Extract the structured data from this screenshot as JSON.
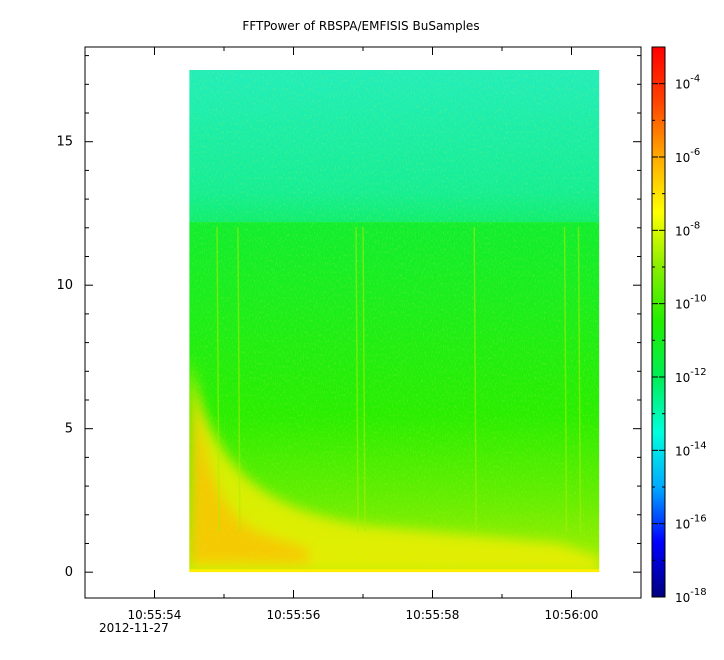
{
  "chart_data": {
    "type": "heatmap",
    "title": "FFTPower of RBSPA/EMFISIS  BuSamples",
    "xlabel": "",
    "ylabel": "",
    "x_axis": {
      "type": "time",
      "range": [
        "10:55:53.0",
        "10:56:01.0"
      ],
      "tick_labels": [
        "10:55:54",
        "10:55:56",
        "10:55:58",
        "10:56:00"
      ],
      "date_label": "2012-11-27",
      "minor_step_seconds": 1
    },
    "y_axis": {
      "range": [
        -0.9,
        18.3
      ],
      "ticks": [
        0,
        5,
        10,
        15
      ],
      "minor_step": 1
    },
    "data_extent": {
      "x": [
        "10:55:54.5",
        "10:56:00.4"
      ],
      "y": [
        0,
        17.5
      ]
    },
    "band_boundary_y": 12.2,
    "colorbar": {
      "scale": "log",
      "range": [
        1e-18,
        0.001
      ],
      "tick_labels": [
        {
          "base": "10",
          "exp": "-4"
        },
        {
          "base": "10",
          "exp": "-6"
        },
        {
          "base": "10",
          "exp": "-8"
        },
        {
          "base": "10",
          "exp": "-10"
        },
        {
          "base": "10",
          "exp": "-12"
        },
        {
          "base": "10",
          "exp": "-14"
        },
        {
          "base": "10",
          "exp": "-16"
        },
        {
          "base": "10",
          "exp": "-18"
        }
      ],
      "tick_values": [
        0.0001,
        1e-06,
        1e-08,
        1e-10,
        1e-12,
        1e-14,
        1e-16,
        1e-18
      ],
      "colors": [
        "#00007f",
        "#0000ff",
        "#00aaff",
        "#00ffdd",
        "#00ee55",
        "#22ee00",
        "#88ee00",
        "#ffff00",
        "#ffaa00",
        "#ff4400",
        "#ff0000"
      ]
    },
    "colors": {
      "upper_band": "#12ee88",
      "lower_band": "#22ee00",
      "hiss_band": "#eeee00",
      "hiss_core": "#ffbb00"
    }
  }
}
